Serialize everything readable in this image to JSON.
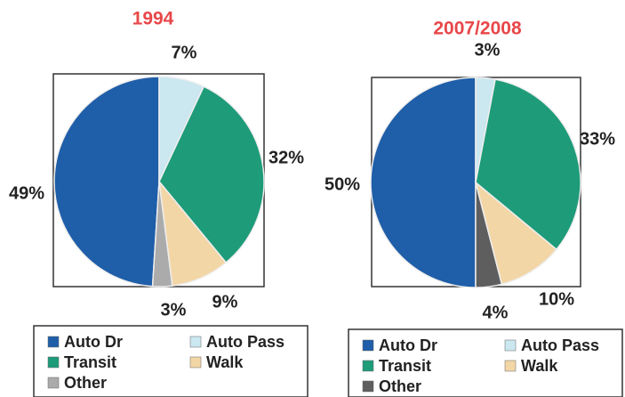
{
  "chart_data": [
    {
      "type": "pie",
      "title": "1994",
      "categories": [
        "Auto Dr",
        "Auto Pass",
        "Transit",
        "Walk",
        "Other"
      ],
      "values": [
        49,
        7,
        32,
        9,
        3
      ],
      "value_labels": [
        "49%",
        "7%",
        "32%",
        "9%",
        "3%"
      ],
      "colors": [
        "#1f5ea8",
        "#cbe7f0",
        "#1e9b79",
        "#f3d6a6",
        "#ababab"
      ]
    },
    {
      "type": "pie",
      "title": "2007/2008",
      "categories": [
        "Auto Dr",
        "Auto Pass",
        "Transit",
        "Walk",
        "Other"
      ],
      "values": [
        50,
        3,
        33,
        10,
        4
      ],
      "value_labels": [
        "50%",
        "3%",
        "33%",
        "10%",
        "4%"
      ],
      "colors": [
        "#1f5ea8",
        "#cbe7f0",
        "#1e9b79",
        "#f3d6a6",
        "#5e5e5e"
      ]
    }
  ]
}
